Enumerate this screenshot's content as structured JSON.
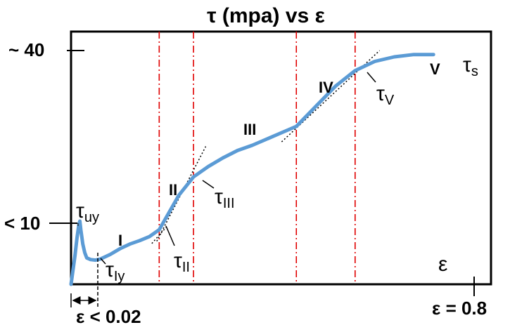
{
  "chart_data": {
    "type": "line",
    "title": "τ (mpa) vs ε",
    "xlabel": "ε",
    "ylabel": "",
    "xlim": [
      0,
      0.8
    ],
    "ylim": [
      0,
      44
    ],
    "x_tick_labels": [
      "ε < 0.02",
      "ε = 0.8"
    ],
    "y_tick_labels": [
      "< 10",
      "~ 40"
    ],
    "stage_labels": [
      "I",
      "II",
      "III",
      "IV",
      "V"
    ],
    "annotations": [
      {
        "main": "τ",
        "sub": "uy",
        "x": 0.019,
        "y": 11.0
      },
      {
        "main": "τ",
        "sub": "Iy",
        "x": 0.05,
        "y": 4.3
      },
      {
        "main": "τ",
        "sub": "II",
        "x": 0.18,
        "y": 8.5
      },
      {
        "main": "τ",
        "sub": "III",
        "x": 0.25,
        "y": 18.5
      },
      {
        "main": "τ",
        "sub": "V",
        "x": 0.56,
        "y": 36.0
      },
      {
        "main": "τ",
        "sub": "s",
        "x": 0.73,
        "y": 39.2
      }
    ],
    "boundaries_x": [
      0.18,
      0.25,
      0.46,
      0.58
    ],
    "series": [
      {
        "x": [
          0.0,
          0.004,
          0.008,
          0.012,
          0.016,
          0.018,
          0.02,
          0.024,
          0.028,
          0.032,
          0.04,
          0.05,
          0.06,
          0.08,
          0.1,
          0.12,
          0.14,
          0.16,
          0.18,
          0.2,
          0.22,
          0.25,
          0.28,
          0.31,
          0.34,
          0.37,
          0.4,
          0.43,
          0.46,
          0.5,
          0.54,
          0.58,
          0.62,
          0.66,
          0.7,
          0.74
        ],
        "values": [
          0.0,
          2.5,
          5.0,
          8.0,
          10.4,
          11.0,
          9.5,
          7.0,
          5.5,
          4.6,
          4.3,
          4.2,
          4.4,
          5.2,
          6.2,
          7.0,
          7.6,
          8.3,
          9.5,
          12.5,
          15.5,
          18.7,
          20.5,
          22.0,
          23.3,
          24.2,
          25.3,
          26.4,
          27.5,
          31.0,
          34.5,
          37.2,
          38.8,
          39.6,
          40.0,
          40.0
        ]
      }
    ],
    "tangents": [
      {
        "x": [
          0.165,
          0.195
        ],
        "values": [
          7.1,
          10.0
        ]
      },
      {
        "x": [
          0.175,
          0.275
        ],
        "values": [
          7.5,
          24.0
        ]
      },
      {
        "x": [
          0.43,
          0.63
        ],
        "values": [
          24.8,
          40.7
        ]
      }
    ],
    "grid": false,
    "colors": {
      "series": "#5b9bd5",
      "boundary": "#e00000",
      "tangent": "#000000",
      "frame": "#000000"
    }
  }
}
